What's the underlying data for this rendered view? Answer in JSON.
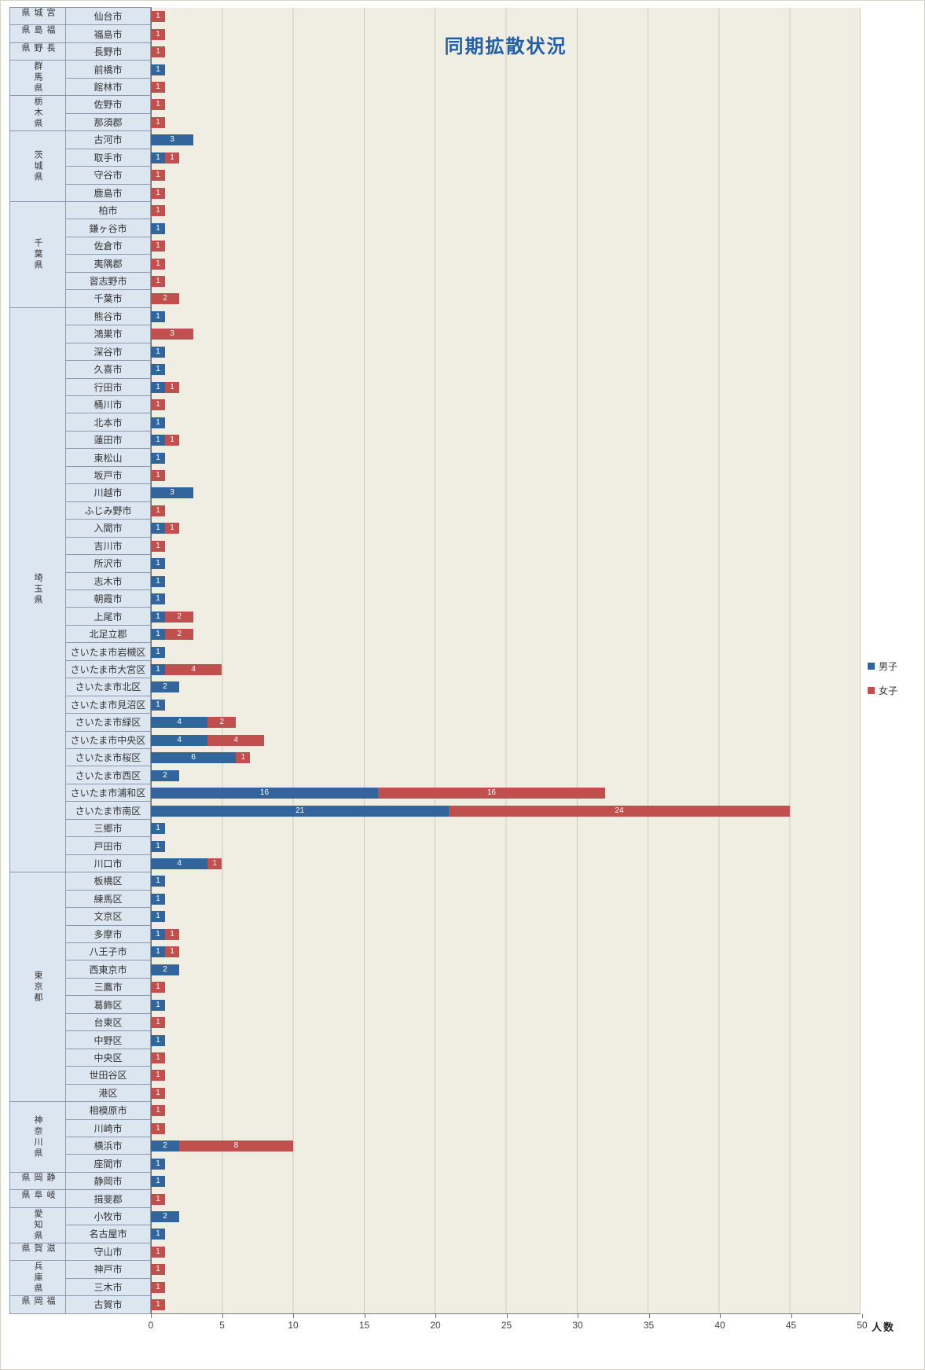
{
  "chart_data": {
    "type": "bar",
    "orientation": "horizontal",
    "stacked": true,
    "title": "同期拡散状況",
    "xlabel": "人数",
    "xlim": [
      0,
      50
    ],
    "xticks": [
      0,
      5,
      10,
      15,
      20,
      25,
      30,
      35,
      40,
      45,
      50
    ],
    "grid": "vertical",
    "legend_position": "right",
    "series": [
      {
        "name": "男子",
        "color": "#31659C"
      },
      {
        "name": "女子",
        "color": "#C0504D"
      }
    ],
    "groups": [
      {
        "prefecture": "宮城県",
        "cities": [
          {
            "name": "仙台市",
            "values": [
              0,
              1
            ]
          }
        ]
      },
      {
        "prefecture": "福島県",
        "cities": [
          {
            "name": "福島市",
            "values": [
              0,
              1
            ]
          }
        ]
      },
      {
        "prefecture": "長野県",
        "cities": [
          {
            "name": "長野市",
            "values": [
              0,
              1
            ]
          }
        ]
      },
      {
        "prefecture": "群馬県",
        "cities": [
          {
            "name": "前橋市",
            "values": [
              1,
              0
            ]
          },
          {
            "name": "館林市",
            "values": [
              0,
              1
            ]
          }
        ]
      },
      {
        "prefecture": "栃木県",
        "cities": [
          {
            "name": "佐野市",
            "values": [
              0,
              1
            ]
          },
          {
            "name": "那須郡",
            "values": [
              0,
              1
            ]
          }
        ]
      },
      {
        "prefecture": "茨城県",
        "cities": [
          {
            "name": "古河市",
            "values": [
              3,
              0
            ]
          },
          {
            "name": "取手市",
            "values": [
              1,
              1
            ]
          },
          {
            "name": "守谷市",
            "values": [
              0,
              1
            ]
          },
          {
            "name": "鹿島市",
            "values": [
              0,
              1
            ]
          }
        ]
      },
      {
        "prefecture": "千葉県",
        "cities": [
          {
            "name": "柏市",
            "values": [
              0,
              1
            ]
          },
          {
            "name": "鎌ヶ谷市",
            "values": [
              1,
              0
            ]
          },
          {
            "name": "佐倉市",
            "values": [
              0,
              1
            ]
          },
          {
            "name": "夷隅郡",
            "values": [
              0,
              1
            ]
          },
          {
            "name": "習志野市",
            "values": [
              0,
              1
            ]
          },
          {
            "name": "千葉市",
            "values": [
              0,
              2
            ]
          }
        ]
      },
      {
        "prefecture": "埼玉県",
        "cities": [
          {
            "name": "熊谷市",
            "values": [
              1,
              0
            ]
          },
          {
            "name": "鴻巣市",
            "values": [
              0,
              3
            ]
          },
          {
            "name": "深谷市",
            "values": [
              1,
              0
            ]
          },
          {
            "name": "久喜市",
            "values": [
              1,
              0
            ]
          },
          {
            "name": "行田市",
            "values": [
              1,
              1
            ]
          },
          {
            "name": "桶川市",
            "values": [
              0,
              1
            ]
          },
          {
            "name": "北本市",
            "values": [
              1,
              0
            ]
          },
          {
            "name": "蓮田市",
            "values": [
              1,
              1
            ]
          },
          {
            "name": "東松山",
            "values": [
              1,
              0
            ]
          },
          {
            "name": "坂戸市",
            "values": [
              0,
              1
            ]
          },
          {
            "name": "川越市",
            "values": [
              3,
              0
            ]
          },
          {
            "name": "ふじみ野市",
            "values": [
              0,
              1
            ]
          },
          {
            "name": "入間市",
            "values": [
              1,
              1
            ]
          },
          {
            "name": "吉川市",
            "values": [
              0,
              1
            ]
          },
          {
            "name": "所沢市",
            "values": [
              1,
              0
            ]
          },
          {
            "name": "志木市",
            "values": [
              1,
              0
            ]
          },
          {
            "name": "朝霞市",
            "values": [
              1,
              0
            ]
          },
          {
            "name": "上尾市",
            "values": [
              1,
              2
            ]
          },
          {
            "name": "北足立郡",
            "values": [
              1,
              2
            ]
          },
          {
            "name": "さいたま市岩槻区",
            "values": [
              1,
              0
            ]
          },
          {
            "name": "さいたま市大宮区",
            "values": [
              1,
              4
            ]
          },
          {
            "name": "さいたま市北区",
            "values": [
              2,
              0
            ]
          },
          {
            "name": "さいたま市見沼区",
            "values": [
              1,
              0
            ]
          },
          {
            "name": "さいたま市緑区",
            "values": [
              4,
              2
            ]
          },
          {
            "name": "さいたま市中央区",
            "values": [
              4,
              4
            ]
          },
          {
            "name": "さいたま市桜区",
            "values": [
              6,
              1
            ]
          },
          {
            "name": "さいたま市西区",
            "values": [
              2,
              0
            ]
          },
          {
            "name": "さいたま市浦和区",
            "values": [
              16,
              16
            ]
          },
          {
            "name": "さいたま市南区",
            "values": [
              21,
              24
            ]
          },
          {
            "name": "三郷市",
            "values": [
              1,
              0
            ]
          },
          {
            "name": "戸田市",
            "values": [
              1,
              0
            ]
          },
          {
            "name": "川口市",
            "values": [
              4,
              1
            ]
          }
        ]
      },
      {
        "prefecture": "東京都",
        "cities": [
          {
            "name": "板橋区",
            "values": [
              1,
              0
            ]
          },
          {
            "name": "練馬区",
            "values": [
              1,
              0
            ]
          },
          {
            "name": "文京区",
            "values": [
              1,
              0
            ]
          },
          {
            "name": "多摩市",
            "values": [
              1,
              1
            ]
          },
          {
            "name": "八王子市",
            "values": [
              1,
              1
            ]
          },
          {
            "name": "西東京市",
            "values": [
              2,
              0
            ]
          },
          {
            "name": "三鷹市",
            "values": [
              0,
              1
            ]
          },
          {
            "name": "葛飾区",
            "values": [
              1,
              0
            ]
          },
          {
            "name": "台東区",
            "values": [
              0,
              1
            ]
          },
          {
            "name": "中野区",
            "values": [
              1,
              0
            ]
          },
          {
            "name": "中央区",
            "values": [
              0,
              1
            ]
          },
          {
            "name": "世田谷区",
            "values": [
              0,
              1
            ]
          },
          {
            "name": "港区",
            "values": [
              0,
              1
            ]
          }
        ]
      },
      {
        "prefecture": "神奈川県",
        "cities": [
          {
            "name": "相模原市",
            "values": [
              0,
              1
            ]
          },
          {
            "name": "川崎市",
            "values": [
              0,
              1
            ]
          },
          {
            "name": "横浜市",
            "values": [
              2,
              8
            ]
          },
          {
            "name": "座間市",
            "values": [
              1,
              0
            ]
          }
        ]
      },
      {
        "prefecture": "静岡県",
        "cities": [
          {
            "name": "静岡市",
            "values": [
              1,
              0
            ]
          }
        ]
      },
      {
        "prefecture": "岐阜県",
        "cities": [
          {
            "name": "揖斐郡",
            "values": [
              0,
              1
            ]
          }
        ]
      },
      {
        "prefecture": "愛知県",
        "cities": [
          {
            "name": "小牧市",
            "values": [
              2,
              0
            ]
          },
          {
            "name": "名古屋市",
            "values": [
              1,
              0
            ]
          }
        ]
      },
      {
        "prefecture": "滋賀県",
        "cities": [
          {
            "name": "守山市",
            "values": [
              0,
              1
            ]
          }
        ]
      },
      {
        "prefecture": "兵庫県",
        "cities": [
          {
            "name": "神戸市",
            "values": [
              0,
              1
            ]
          },
          {
            "name": "三木市",
            "values": [
              0,
              1
            ]
          }
        ]
      },
      {
        "prefecture": "福岡県",
        "cities": [
          {
            "name": "古賀市",
            "values": [
              0,
              1
            ]
          }
        ]
      }
    ]
  },
  "legend": {
    "items": [
      {
        "label": "男子",
        "color": "#31659C"
      },
      {
        "label": "女子",
        "color": "#C0504D"
      }
    ]
  }
}
